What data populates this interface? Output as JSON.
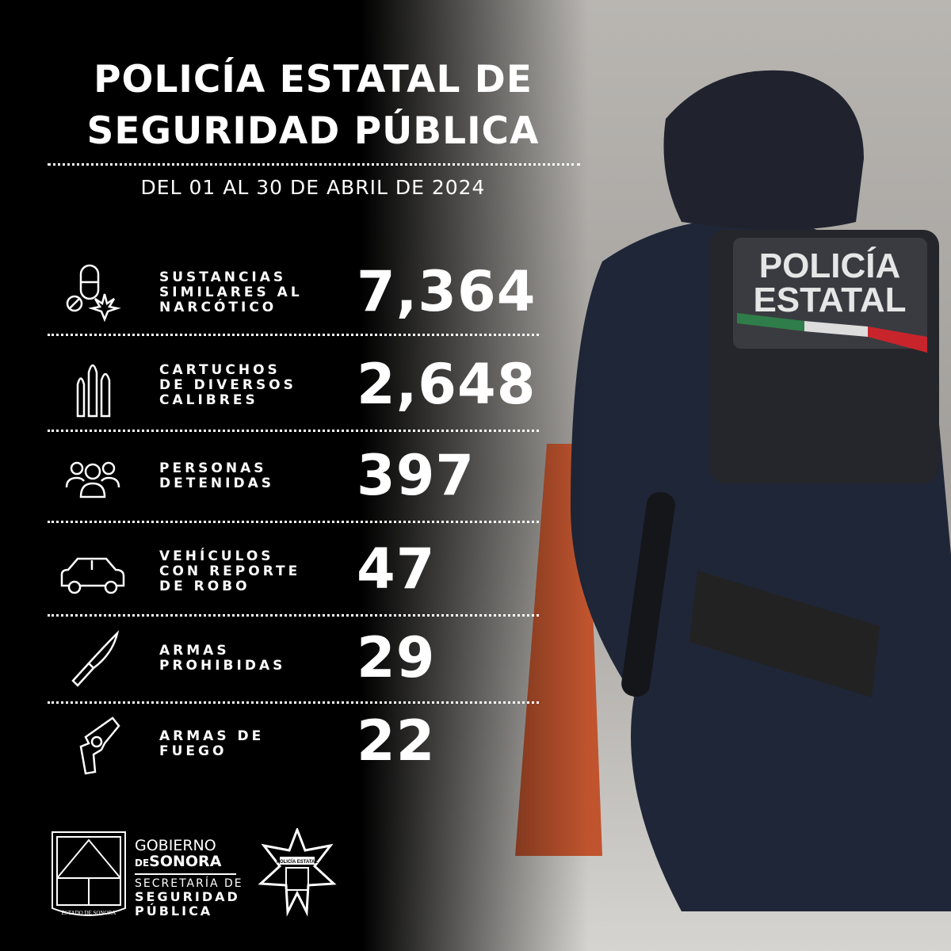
{
  "header": {
    "title_line1": "POLICÍA ESTATAL DE",
    "title_line2": "SEGURIDAD PÚBLICA",
    "period": "DEL 01 AL 30 DE ABRIL DE 2024"
  },
  "stats": [
    {
      "icon": "drugs-icon",
      "label": [
        "SUSTANCIAS",
        "SIMILARES AL",
        "NARCÓTICO"
      ],
      "value": "7,364"
    },
    {
      "icon": "bullets-icon",
      "label": [
        "CARTUCHOS",
        "DE DIVERSOS",
        "CALIBRES"
      ],
      "value": "2,648"
    },
    {
      "icon": "people-icon",
      "label": [
        "PERSONAS",
        "DETENIDAS"
      ],
      "value": "397"
    },
    {
      "icon": "car-icon",
      "label": [
        "VEHÍCULOS",
        "CON REPORTE",
        "DE ROBO"
      ],
      "value": "47"
    },
    {
      "icon": "knife-icon",
      "label": [
        "ARMAS",
        "PROHIBIDAS"
      ],
      "value": "29"
    },
    {
      "icon": "revolver-icon",
      "label": [
        "ARMAS DE",
        "FUEGO"
      ],
      "value": "22"
    }
  ],
  "footer": {
    "gov_line1": "GOBIERNO",
    "gov_de": "DE",
    "gov_line2": "SONORA",
    "sec_line1": "SECRETARÍA DE",
    "sec_line2": "SEGURIDAD",
    "sec_line3": "PÚBLICA",
    "shield_text": "ESTADO DE SONORA",
    "badge_text": "POLICÍA ESTATAL"
  },
  "photo": {
    "vest_line1": "POLICÍA",
    "vest_line2": "ESTATAL"
  },
  "colors": {
    "background": "#000000",
    "text": "#ffffff",
    "uniform": "#1f2637",
    "flag_green": "#2f7d4a",
    "flag_red": "#c8242c"
  }
}
